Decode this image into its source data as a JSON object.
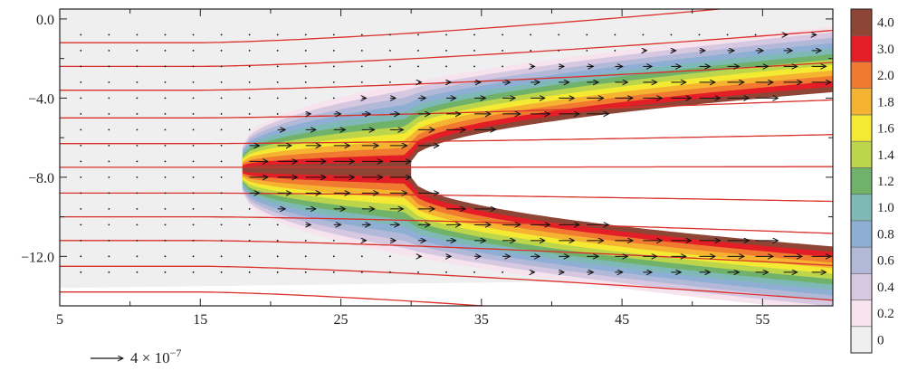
{
  "chart_data": {
    "type": "heatmap",
    "title": "",
    "xlabel": "",
    "ylabel": "",
    "xlim": [
      5,
      60
    ],
    "ylim": [
      -14.5,
      0.5
    ],
    "x_ticks": [
      5,
      15,
      25,
      35,
      45,
      55
    ],
    "x_tick_labels": [
      "5",
      "15",
      "25",
      "35",
      "45",
      "55"
    ],
    "y_ticks": [
      0,
      -4,
      -8,
      -12
    ],
    "y_tick_labels": [
      "0.0",
      "−4.0",
      "−8.0",
      "−12.0"
    ],
    "colorbar": {
      "levels": [
        0,
        0.2,
        0.4,
        0.6,
        0.8,
        1.0,
        1.2,
        1.4,
        1.6,
        1.8,
        2.0,
        3.0,
        4.0
      ],
      "labels": [
        "0",
        "0.2",
        "0.4",
        "0.6",
        "0.8",
        "1.0",
        "1.2",
        "1.4",
        "1.6",
        "1.8",
        "2.0",
        "3.0",
        "4.0"
      ],
      "colors": [
        "#efefef",
        "#f6e3ee",
        "#d7c8e2",
        "#b2b8d8",
        "#8eaed4",
        "#7fb9b5",
        "#70b26a",
        "#bcd54a",
        "#f4ea33",
        "#f6b331",
        "#f07a2f",
        "#e31e26",
        "#8e4535"
      ]
    },
    "cavity": {
      "x_start": 30,
      "x_end": 60,
      "y_center": -7.6,
      "half_height_start": 0.4,
      "half_height_end": 3.9
    },
    "shear_layer": {
      "x_start": 18,
      "x_end": 60,
      "y_center": -7.6,
      "half_height_start": 1.2,
      "half_height_end": 7.2
    },
    "streamlines_y": [
      -1.2,
      -2.4,
      -3.6,
      -5.0,
      -6.3,
      -7.5,
      -8.8,
      -10.0,
      -11.2,
      -12.5,
      -13.8
    ],
    "vector_reference": {
      "label": "4 × 10",
      "exponent": "−7"
    }
  }
}
